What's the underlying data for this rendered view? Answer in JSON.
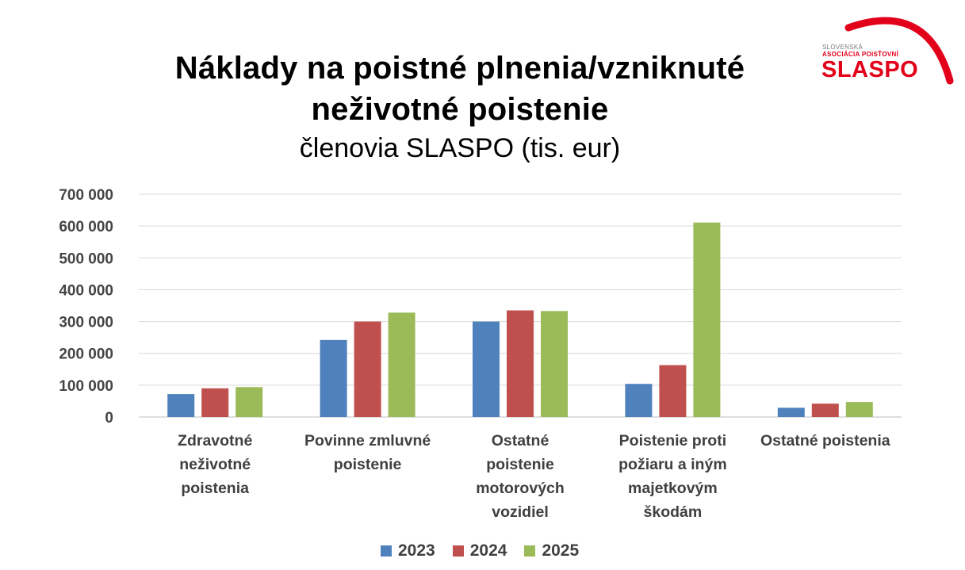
{
  "title_line1": "Náklady na poistné plnenia/vzniknuté",
  "title_line2": "neživotné poistenie",
  "subtitle": "členovia SLASPO (tis. eur)",
  "logo": {
    "line1": "SLOVENSKÁ",
    "line2": "ASOCIÁCIA POISŤOVNÍ",
    "name": "SLASPO",
    "color": "#e2001a"
  },
  "chart_data": {
    "type": "bar",
    "title": "Náklady na poistné plnenia/vzniknuté neživotné poistenie",
    "subtitle": "členovia SLASPO (tis. eur)",
    "categories": [
      [
        "Zdravotné",
        "neživotné",
        "poistenia"
      ],
      [
        "Povinne zmluvné",
        "poistenie"
      ],
      [
        "Ostatné",
        "poistenie",
        "motorových",
        "vozidiel"
      ],
      [
        "Poistenie proti",
        "požiaru a iným",
        "majetkovým",
        "škodám"
      ],
      [
        "Ostatné poistenia"
      ]
    ],
    "series": [
      {
        "name": "2023",
        "color": "#4f81bd",
        "values": [
          72000,
          242000,
          300000,
          104000,
          29000
        ]
      },
      {
        "name": "2024",
        "color": "#c0504d",
        "values": [
          90000,
          300000,
          335000,
          163000,
          42000
        ]
      },
      {
        "name": "2025",
        "color": "#9bbb59",
        "values": [
          94000,
          328000,
          333000,
          611000,
          47000
        ]
      }
    ],
    "ylim": [
      0,
      700000
    ],
    "yticks": [
      0,
      100000,
      200000,
      300000,
      400000,
      500000,
      600000,
      700000
    ],
    "ytick_labels": [
      "0",
      "100 000",
      "200 000",
      "300 000",
      "400 000",
      "500 000",
      "600 000",
      "700 000"
    ],
    "grid": true,
    "legend_position": "bottom"
  }
}
